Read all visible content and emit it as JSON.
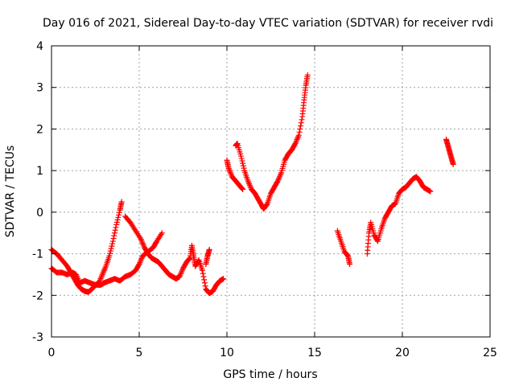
{
  "chart_data": {
    "type": "scatter",
    "title": "Day 016 of 2021, Sidereal Day-to-day VTEC variation (SDTVAR) for receiver rvdi",
    "xlabel": "GPS time / hours",
    "ylabel": "SDTVAR / TECUs",
    "xlim": [
      0,
      25
    ],
    "ylim": [
      -3,
      4
    ],
    "xticks": [
      0,
      5,
      10,
      15,
      20,
      25
    ],
    "yticks": [
      -3,
      -2,
      -1,
      0,
      1,
      2,
      3,
      4
    ],
    "grid": true,
    "marker": "plus",
    "color": "#ff0000",
    "series": [
      {
        "values": [
          [
            0.0,
            -0.9
          ],
          [
            0.3,
            -1.0
          ],
          [
            0.6,
            -1.15
          ],
          [
            0.9,
            -1.3
          ],
          [
            1.1,
            -1.45
          ],
          [
            1.3,
            -1.6
          ],
          [
            1.5,
            -1.75
          ],
          [
            1.7,
            -1.85
          ],
          [
            1.9,
            -1.9
          ],
          [
            2.1,
            -1.92
          ],
          [
            2.3,
            -1.85
          ],
          [
            2.5,
            -1.75
          ],
          [
            2.7,
            -1.7
          ],
          [
            2.9,
            -1.5
          ],
          [
            3.1,
            -1.3
          ],
          [
            3.3,
            -1.05
          ],
          [
            3.5,
            -0.7
          ],
          [
            3.7,
            -0.3
          ],
          [
            3.9,
            0.05
          ],
          [
            4.0,
            0.25
          ]
        ]
      },
      {
        "values": [
          [
            0.0,
            -1.35
          ],
          [
            0.3,
            -1.45
          ],
          [
            0.6,
            -1.45
          ],
          [
            0.9,
            -1.5
          ],
          [
            1.2,
            -1.45
          ],
          [
            1.4,
            -1.5
          ],
          [
            1.6,
            -1.7
          ],
          [
            1.9,
            -1.65
          ],
          [
            2.2,
            -1.7
          ],
          [
            2.5,
            -1.75
          ],
          [
            2.8,
            -1.75
          ],
          [
            3.0,
            -1.7
          ],
          [
            3.3,
            -1.65
          ],
          [
            3.6,
            -1.6
          ],
          [
            3.9,
            -1.65
          ],
          [
            4.2,
            -1.55
          ],
          [
            4.5,
            -1.5
          ],
          [
            4.8,
            -1.4
          ],
          [
            5.0,
            -1.25
          ],
          [
            5.2,
            -1.05
          ],
          [
            5.5,
            -0.95
          ],
          [
            5.8,
            -0.85
          ],
          [
            6.0,
            -0.7
          ],
          [
            6.3,
            -0.5
          ]
        ]
      },
      {
        "values": [
          [
            4.2,
            -0.1
          ],
          [
            4.5,
            -0.25
          ],
          [
            4.8,
            -0.45
          ],
          [
            5.1,
            -0.65
          ],
          [
            5.3,
            -0.85
          ],
          [
            5.5,
            -1.0
          ],
          [
            5.7,
            -1.1
          ],
          [
            5.9,
            -1.15
          ],
          [
            6.1,
            -1.2
          ],
          [
            6.3,
            -1.3
          ],
          [
            6.5,
            -1.4
          ],
          [
            6.7,
            -1.5
          ],
          [
            6.9,
            -1.55
          ],
          [
            7.1,
            -1.6
          ],
          [
            7.3,
            -1.55
          ],
          [
            7.5,
            -1.35
          ],
          [
            7.7,
            -1.2
          ],
          [
            7.9,
            -1.1
          ],
          [
            8.0,
            -0.8
          ],
          [
            8.1,
            -1.05
          ],
          [
            8.2,
            -1.3
          ],
          [
            8.4,
            -1.15
          ],
          [
            8.6,
            -1.4
          ],
          [
            8.8,
            -1.85
          ],
          [
            9.0,
            -1.95
          ],
          [
            9.2,
            -1.9
          ],
          [
            9.4,
            -1.75
          ],
          [
            9.6,
            -1.65
          ],
          [
            9.8,
            -1.6
          ],
          [
            8.8,
            -1.25
          ],
          [
            8.9,
            -1.05
          ],
          [
            9.0,
            -0.9
          ]
        ]
      },
      {
        "values": [
          [
            10.0,
            1.25
          ],
          [
            10.1,
            1.05
          ],
          [
            10.3,
            0.85
          ],
          [
            10.5,
            0.75
          ],
          [
            10.7,
            0.65
          ],
          [
            10.9,
            0.55
          ],
          [
            10.5,
            1.6
          ],
          [
            10.6,
            1.65
          ],
          [
            10.8,
            1.35
          ],
          [
            11.0,
            1.0
          ],
          [
            11.2,
            0.75
          ],
          [
            11.4,
            0.55
          ],
          [
            11.6,
            0.45
          ],
          [
            11.8,
            0.3
          ],
          [
            12.0,
            0.15
          ],
          [
            12.1,
            0.08
          ],
          [
            12.3,
            0.2
          ],
          [
            12.5,
            0.45
          ],
          [
            12.7,
            0.6
          ],
          [
            12.9,
            0.75
          ],
          [
            13.1,
            0.95
          ],
          [
            13.3,
            1.25
          ],
          [
            13.5,
            1.4
          ],
          [
            13.7,
            1.5
          ],
          [
            13.9,
            1.65
          ],
          [
            14.1,
            1.85
          ],
          [
            14.3,
            2.3
          ],
          [
            14.4,
            2.7
          ],
          [
            14.5,
            3.05
          ],
          [
            14.6,
            3.3
          ]
        ]
      },
      {
        "values": [
          [
            16.3,
            -0.45
          ],
          [
            16.5,
            -0.7
          ],
          [
            16.7,
            -0.95
          ],
          [
            16.9,
            -1.05
          ],
          [
            17.0,
            -1.25
          ],
          [
            18.0,
            -1.0
          ],
          [
            18.1,
            -0.5
          ],
          [
            18.2,
            -0.25
          ],
          [
            18.4,
            -0.55
          ],
          [
            18.6,
            -0.7
          ],
          [
            18.8,
            -0.4
          ],
          [
            19.0,
            -0.15
          ],
          [
            19.2,
            0.0
          ],
          [
            19.4,
            0.15
          ],
          [
            19.6,
            0.2
          ],
          [
            19.8,
            0.45
          ],
          [
            20.0,
            0.55
          ],
          [
            20.2,
            0.6
          ],
          [
            20.4,
            0.7
          ],
          [
            20.6,
            0.8
          ],
          [
            20.8,
            0.85
          ],
          [
            21.0,
            0.75
          ],
          [
            21.2,
            0.6
          ],
          [
            21.4,
            0.55
          ],
          [
            21.6,
            0.5
          ]
        ]
      },
      {
        "values": [
          [
            22.5,
            1.75
          ],
          [
            22.6,
            1.6
          ],
          [
            22.7,
            1.45
          ],
          [
            22.8,
            1.3
          ],
          [
            22.9,
            1.15
          ]
        ]
      }
    ]
  }
}
